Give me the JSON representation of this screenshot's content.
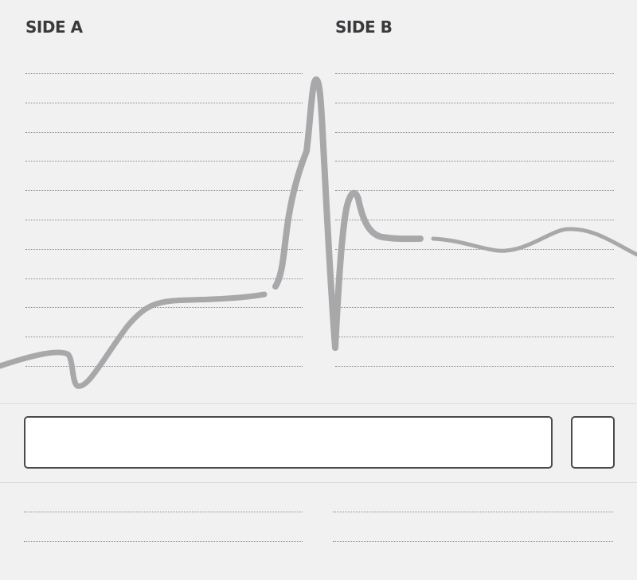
{
  "side_a": {
    "title": "SIDE A"
  },
  "side_b": {
    "title": "SIDE B"
  },
  "colors": {
    "waveform": "#a8a8aa",
    "background": "#f1f1f2",
    "box_border": "#4a4a4c"
  },
  "decoration": "ecg-waveform"
}
